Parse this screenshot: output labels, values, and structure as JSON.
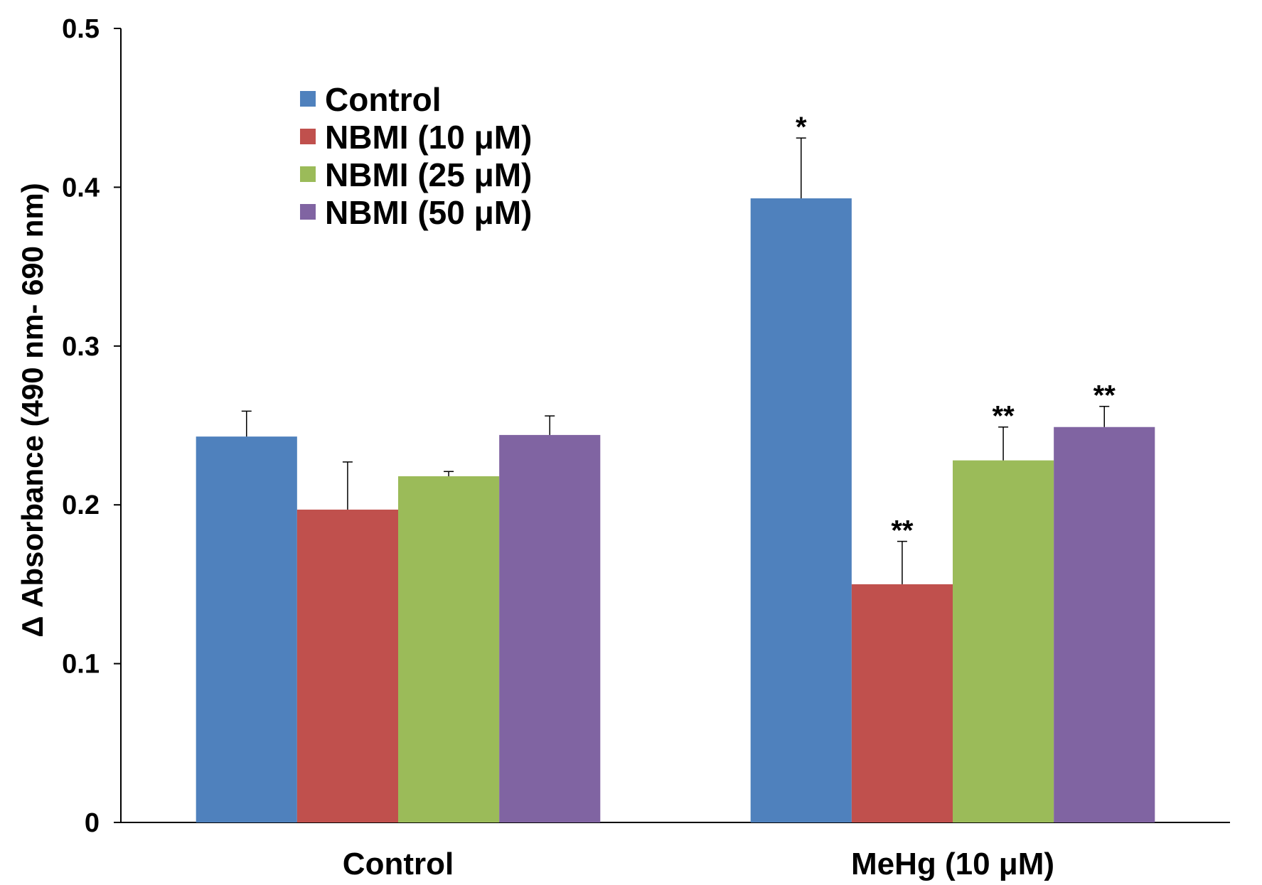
{
  "chart_data": {
    "type": "bar",
    "categories": [
      "Control",
      "MeHg (10 μM)"
    ],
    "series": [
      {
        "name": "Control",
        "values": [
          0.243,
          0.393
        ],
        "errors": [
          0.016,
          0.038
        ],
        "significance": [
          "",
          "*"
        ],
        "color": "#4f81bd"
      },
      {
        "name": "NBMI (10 μM)",
        "values": [
          0.197,
          0.15
        ],
        "errors": [
          0.03,
          0.027
        ],
        "significance": [
          "",
          "**"
        ],
        "color": "#c0504d"
      },
      {
        "name": "NBMI (25 μM)",
        "values": [
          0.218,
          0.228
        ],
        "errors": [
          0.003,
          0.021
        ],
        "significance": [
          "",
          "**"
        ],
        "color": "#9bbb59"
      },
      {
        "name": "NBMI (50 μM)",
        "values": [
          0.244,
          0.249
        ],
        "errors": [
          0.012,
          0.013
        ],
        "significance": [
          "",
          "**"
        ],
        "color": "#8064a2"
      }
    ],
    "title": "",
    "xlabel": "",
    "ylabel": "Δ  Absorbance (490 nm- 690 nm)",
    "ylim": [
      0,
      0.5
    ],
    "yticks": [
      "0",
      "0.1",
      "0.2",
      "0.3",
      "0.4",
      "0.5"
    ],
    "grid": false,
    "legend_position": "top-left"
  }
}
